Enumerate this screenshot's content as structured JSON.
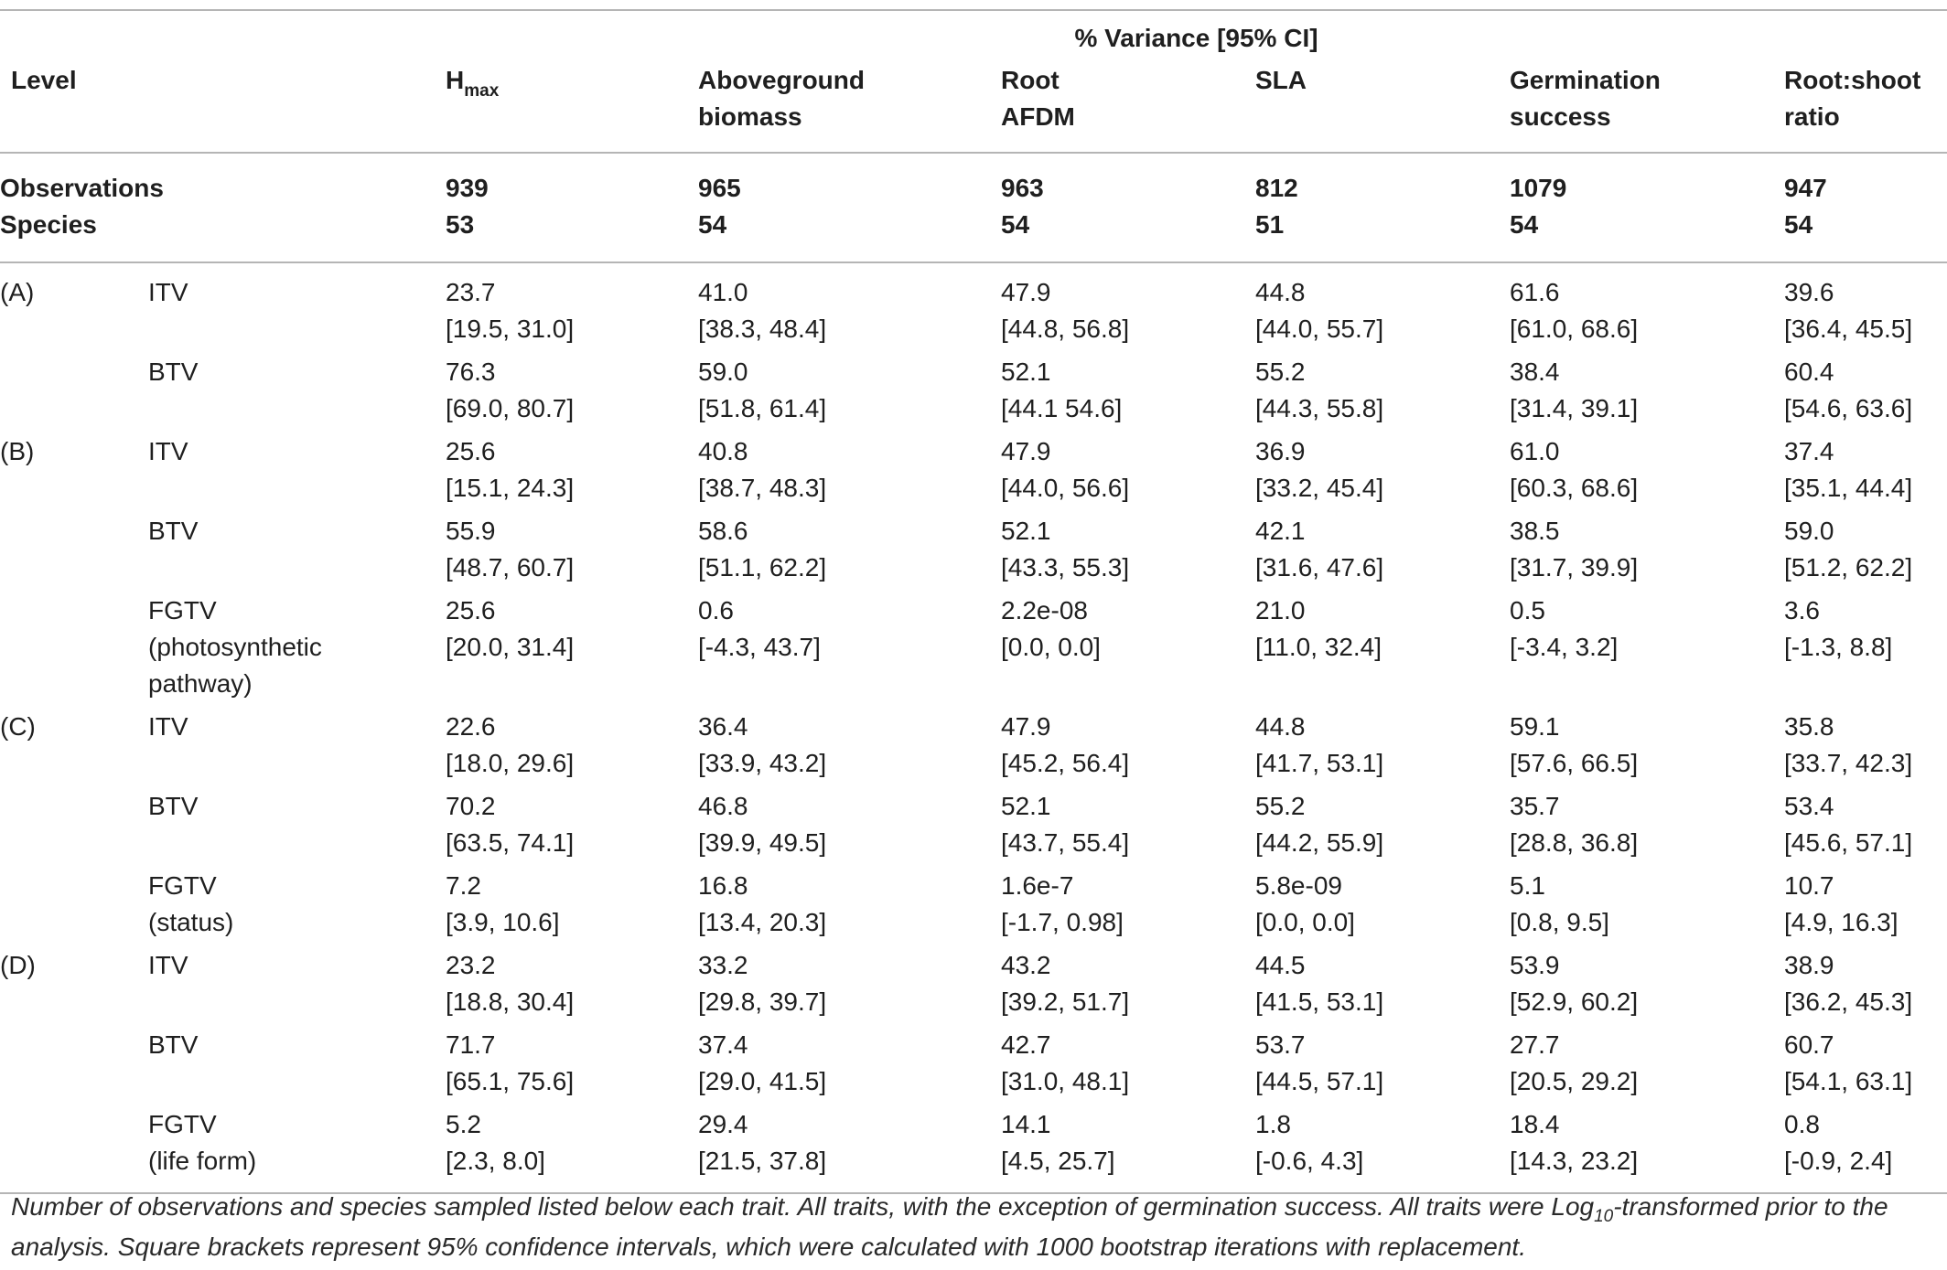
{
  "header": {
    "variance_title": "% Variance [95% CI]",
    "level_label": "Level",
    "columns": [
      {
        "main": "H",
        "sub": "max"
      },
      {
        "line1": "Aboveground",
        "line2": "biomass"
      },
      {
        "line1": "Root",
        "line2": "AFDM"
      },
      {
        "line1": "SLA",
        "line2": ""
      },
      {
        "line1": "Germination",
        "line2": "success"
      },
      {
        "line1": "Root:shoot",
        "line2": "ratio"
      }
    ]
  },
  "summary": {
    "observations_label": "Observations",
    "species_label": "Species",
    "observations": [
      "939",
      "965",
      "963",
      "812",
      "1079",
      "947"
    ],
    "species": [
      "53",
      "54",
      "54",
      "51",
      "54",
      "54"
    ]
  },
  "rows": [
    {
      "level": "(A)",
      "component": [
        "ITV"
      ],
      "values": [
        "23.7",
        "41.0",
        "47.9",
        "44.8",
        "61.6",
        "39.6"
      ],
      "ci": [
        "[19.5, 31.0]",
        "[38.3, 48.4]",
        "[44.8, 56.8]",
        "[44.0, 55.7]",
        "[61.0, 68.6]",
        "[36.4, 45.5]"
      ]
    },
    {
      "level": "",
      "component": [
        "BTV"
      ],
      "values": [
        "76.3",
        "59.0",
        "52.1",
        "55.2",
        "38.4",
        "60.4"
      ],
      "ci": [
        "[69.0, 80.7]",
        "[51.8, 61.4]",
        "[44.1 54.6]",
        "[44.3, 55.8]",
        "[31.4, 39.1]",
        "[54.6, 63.6]"
      ]
    },
    {
      "level": "(B)",
      "component": [
        "ITV"
      ],
      "values": [
        "25.6",
        "40.8",
        "47.9",
        "36.9",
        "61.0",
        "37.4"
      ],
      "ci": [
        "[15.1, 24.3]",
        "[38.7, 48.3]",
        "[44.0, 56.6]",
        "[33.2, 45.4]",
        "[60.3, 68.6]",
        "[35.1, 44.4]"
      ]
    },
    {
      "level": "",
      "component": [
        "BTV"
      ],
      "values": [
        "55.9",
        "58.6",
        "52.1",
        "42.1",
        "38.5",
        "59.0"
      ],
      "ci": [
        "[48.7, 60.7]",
        "[51.1, 62.2]",
        "[43.3, 55.3]",
        "[31.6, 47.6]",
        "[31.7, 39.9]",
        "[51.2, 62.2]"
      ]
    },
    {
      "level": "",
      "component": [
        "FGTV",
        "(photosynthetic",
        "pathway)"
      ],
      "values": [
        "25.6",
        "0.6",
        "2.2e-08",
        "21.0",
        "0.5",
        "3.6"
      ],
      "ci": [
        "[20.0, 31.4]",
        "[-4.3, 43.7]",
        "[0.0, 0.0]",
        "[11.0, 32.4]",
        "[-3.4, 3.2]",
        "[-1.3, 8.8]"
      ]
    },
    {
      "level": "(C)",
      "component": [
        "ITV"
      ],
      "values": [
        "22.6",
        "36.4",
        "47.9",
        "44.8",
        "59.1",
        "35.8"
      ],
      "ci": [
        "[18.0, 29.6]",
        "[33.9, 43.2]",
        "[45.2, 56.4]",
        "[41.7, 53.1]",
        "[57.6, 66.5]",
        "[33.7, 42.3]"
      ]
    },
    {
      "level": "",
      "component": [
        "BTV"
      ],
      "values": [
        "70.2",
        "46.8",
        "52.1",
        "55.2",
        "35.7",
        "53.4"
      ],
      "ci": [
        "[63.5, 74.1]",
        "[39.9, 49.5]",
        "[43.7, 55.4]",
        "[44.2, 55.9]",
        "[28.8, 36.8]",
        "[45.6, 57.1]"
      ]
    },
    {
      "level": "",
      "component": [
        "FGTV",
        "(status)"
      ],
      "values": [
        "7.2",
        "16.8",
        "1.6e-7",
        "5.8e-09",
        "5.1",
        "10.7"
      ],
      "ci": [
        "[3.9, 10.6]",
        "[13.4, 20.3]",
        "[-1.7, 0.98]",
        "[0.0, 0.0]",
        "[0.8, 9.5]",
        "[4.9, 16.3]"
      ]
    },
    {
      "level": "(D)",
      "component": [
        "ITV"
      ],
      "values": [
        "23.2",
        "33.2",
        "43.2",
        "44.5",
        "53.9",
        "38.9"
      ],
      "ci": [
        "[18.8, 30.4]",
        "[29.8, 39.7]",
        "[39.2, 51.7]",
        "[41.5, 53.1]",
        "[52.9, 60.2]",
        "[36.2, 45.3]"
      ]
    },
    {
      "level": "",
      "component": [
        "BTV"
      ],
      "values": [
        "71.7",
        "37.4",
        "42.7",
        "53.7",
        "27.7",
        "60.7"
      ],
      "ci": [
        "[65.1, 75.6]",
        "[29.0, 41.5]",
        "[31.0, 48.1]",
        "[44.5, 57.1]",
        "[20.5, 29.2]",
        "[54.1, 63.1]"
      ]
    },
    {
      "level": "",
      "component": [
        "FGTV",
        "(life form)"
      ],
      "values": [
        "5.2",
        "29.4",
        "14.1",
        "1.8",
        "18.4",
        "0.8"
      ],
      "ci": [
        "[2.3, 8.0]",
        "[21.5, 37.8]",
        "[4.5, 25.7]",
        "[-0.6, 4.3]",
        "[14.3, 23.2]",
        "[-0.9, 2.4]"
      ]
    }
  ],
  "footnote": {
    "part1": "Number of observations and species sampled listed below each trait. All traits, with the exception of germination success. All traits were Log",
    "sub": "10",
    "part2": "-transformed prior to the analysis. Square brackets represent 95% confidence intervals, which were calculated with 1000 bootstrap iterations with replacement."
  }
}
